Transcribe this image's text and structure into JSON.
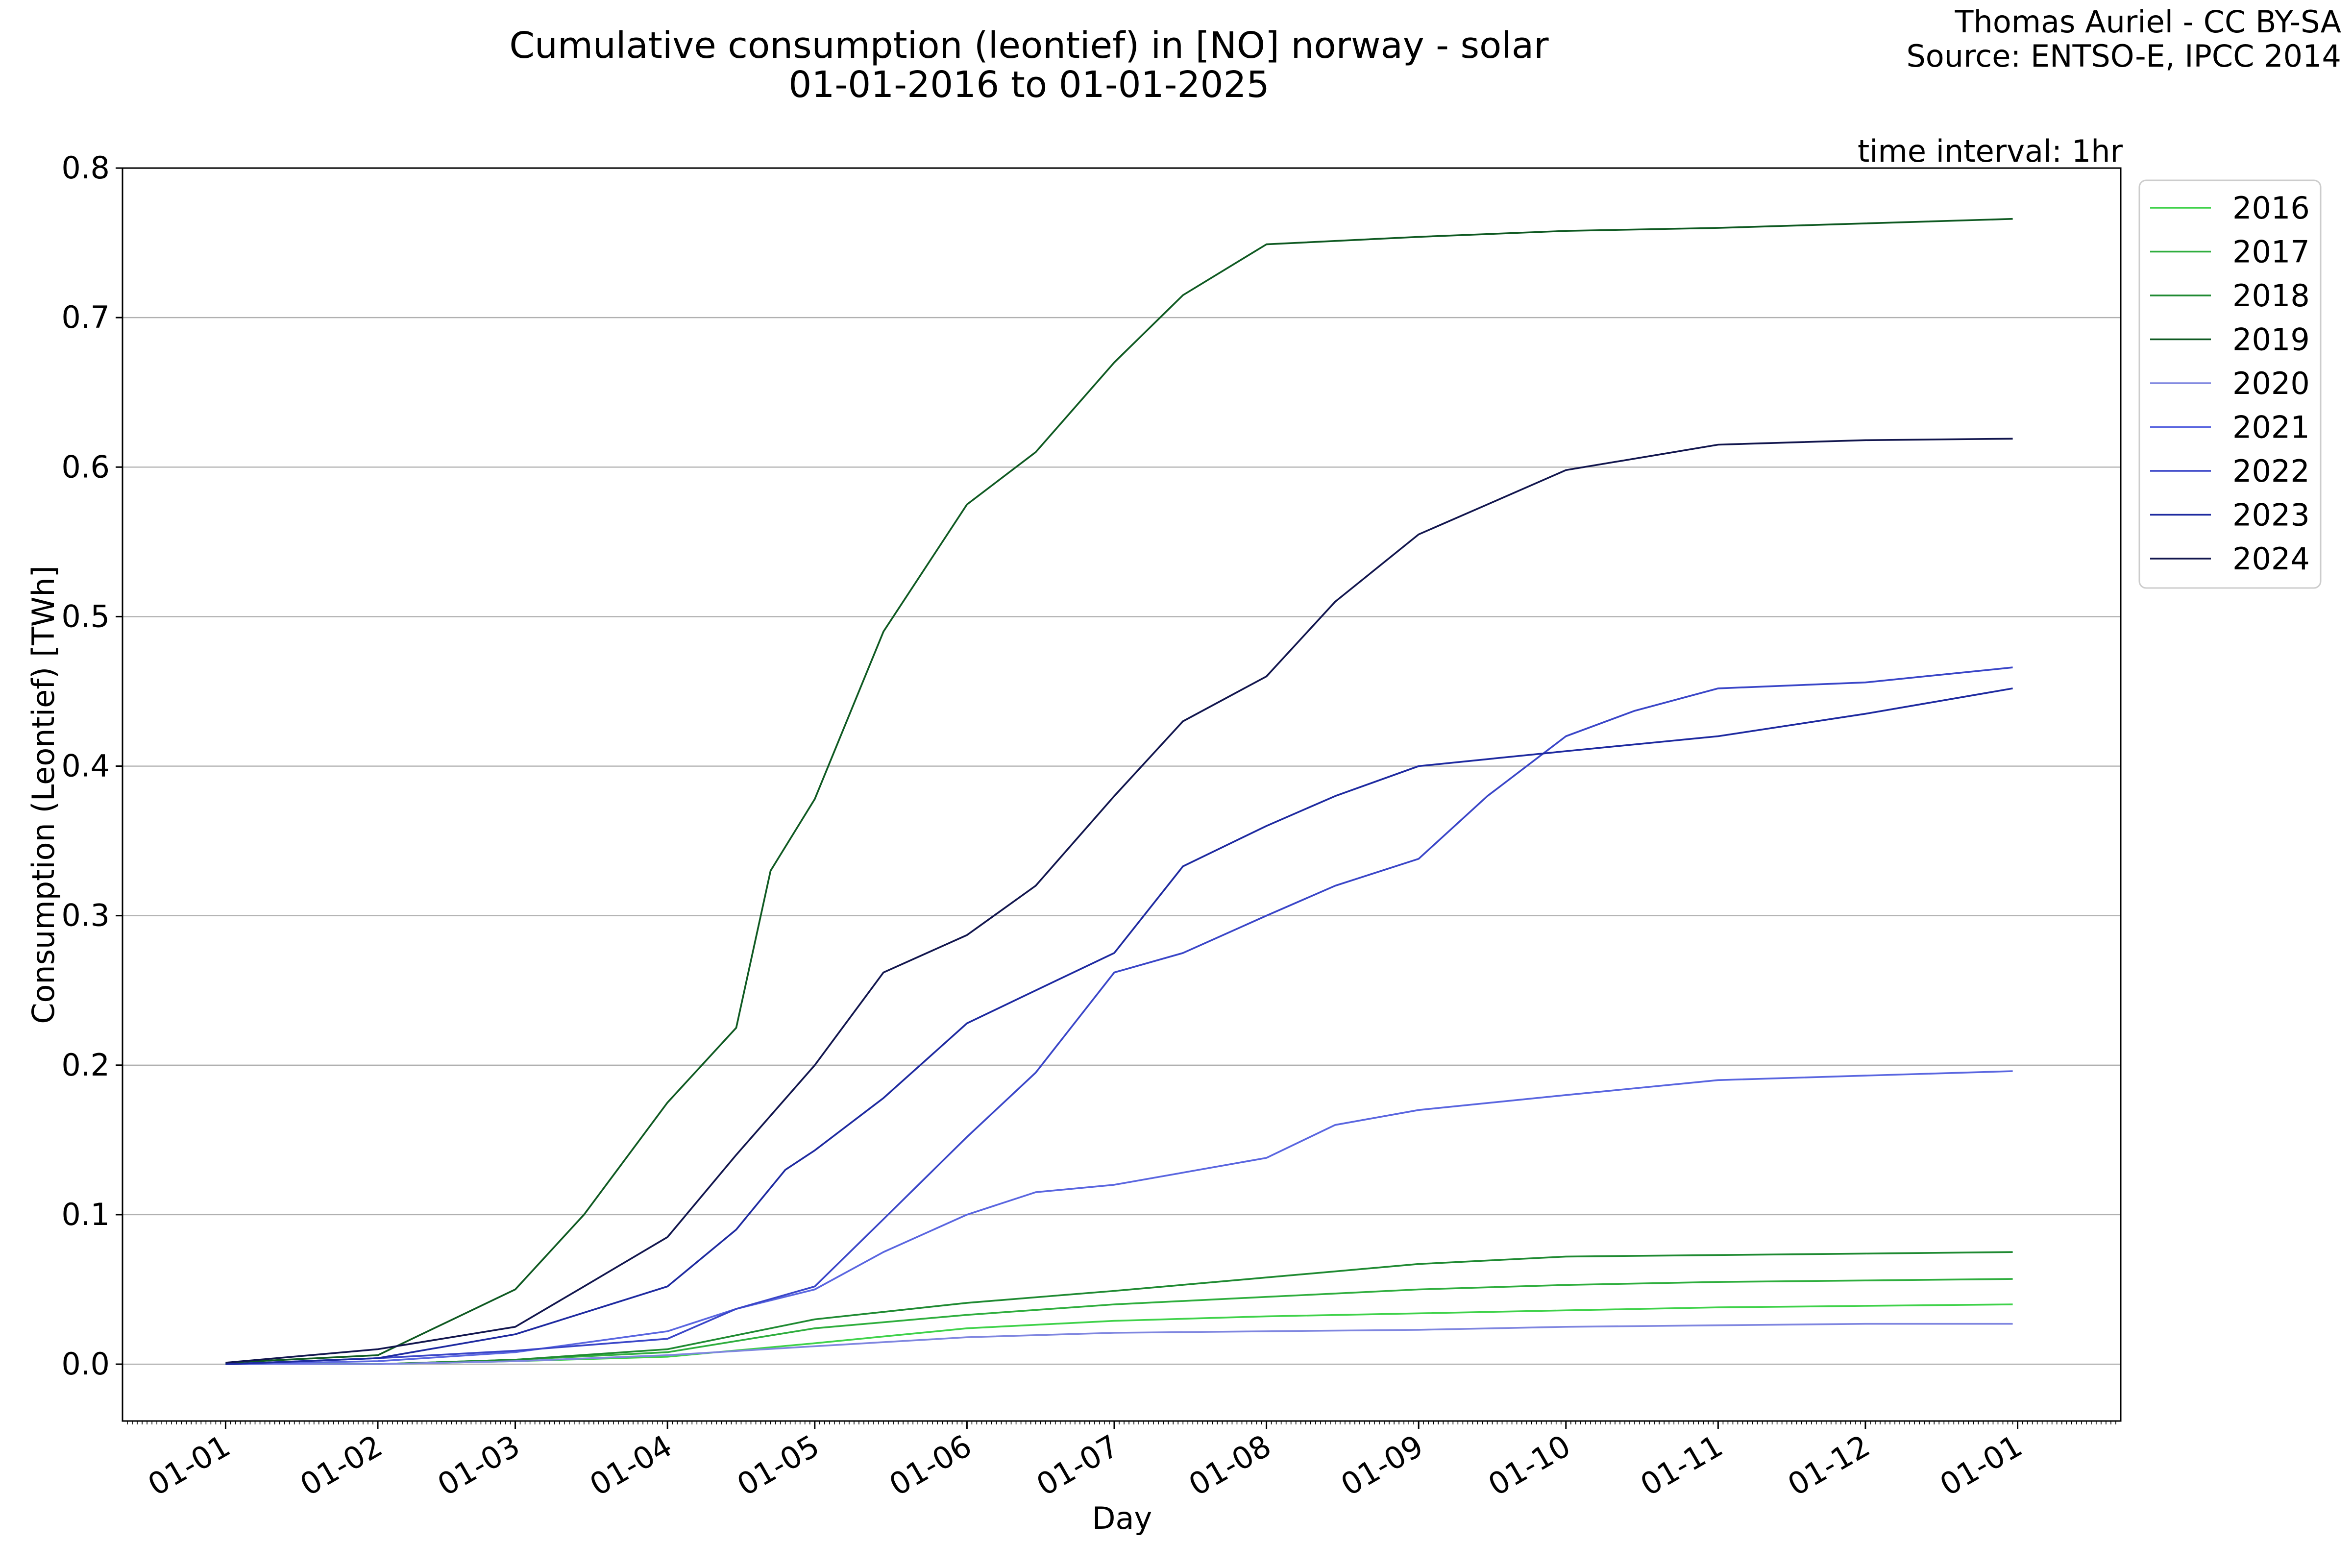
{
  "chart_data": {
    "type": "line",
    "title": "Cumulative consumption (leontief) in [NO] norway - solar",
    "subtitle": "01-01-2016 to 01-01-2025",
    "credit_line1": "Thomas Auriel - CC BY-SA",
    "credit_line2": "Source: ENTSO-E, IPCC 2014",
    "annotation": "time interval: 1hr",
    "xlabel": "Day",
    "ylabel": "Consumption (Leontief) [TWh]",
    "xlim": [
      "12-11",
      "01-22"
    ],
    "ylim": [
      -0.038,
      0.8
    ],
    "yticks": [
      0.0,
      0.1,
      0.2,
      0.3,
      0.4,
      0.5,
      0.6,
      0.7,
      0.8
    ],
    "ytick_labels": [
      "0.0",
      "0.1",
      "0.2",
      "0.3",
      "0.4",
      "0.5",
      "0.6",
      "0.7",
      "0.8"
    ],
    "xticks": [
      "01-01",
      "02-01",
      "03-01",
      "04-01",
      "05-01",
      "06-01",
      "07-01",
      "08-01",
      "09-01",
      "10-01",
      "11-01",
      "12-01",
      "01-01(next)"
    ],
    "xtick_labels": [
      "01-01",
      "01-02",
      "01-03",
      "01-04",
      "01-05",
      "01-06",
      "01-07",
      "01-08",
      "01-09",
      "01-10",
      "01-11",
      "01-12",
      "01-01"
    ],
    "grid": "y",
    "legend_position": "top-right outside",
    "series": [
      {
        "name": "2016",
        "color": "#3fd24a",
        "x": [
          "01-01",
          "02-01",
          "03-01",
          "04-01",
          "05-01",
          "06-01",
          "07-01",
          "08-01",
          "09-01",
          "10-01",
          "11-01",
          "12-01",
          "12-31"
        ],
        "y": [
          0.0,
          0.0,
          0.002,
          0.005,
          0.014,
          0.024,
          0.029,
          0.032,
          0.034,
          0.036,
          0.038,
          0.039,
          0.04
        ]
      },
      {
        "name": "2017",
        "color": "#2fae3e",
        "x": [
          "01-01",
          "02-01",
          "03-01",
          "04-01",
          "05-01",
          "06-01",
          "07-01",
          "08-01",
          "09-01",
          "10-01",
          "11-01",
          "12-01",
          "12-31"
        ],
        "y": [
          0.0,
          0.0,
          0.003,
          0.008,
          0.024,
          0.033,
          0.04,
          0.045,
          0.05,
          0.053,
          0.055,
          0.056,
          0.057
        ]
      },
      {
        "name": "2018",
        "color": "#1f8a32",
        "x": [
          "01-01",
          "02-01",
          "03-01",
          "04-01",
          "05-01",
          "06-01",
          "07-01",
          "08-01",
          "09-01",
          "10-01",
          "11-01",
          "12-01",
          "12-31"
        ],
        "y": [
          0.0,
          0.0,
          0.003,
          0.01,
          0.03,
          0.041,
          0.049,
          0.058,
          0.067,
          0.072,
          0.073,
          0.074,
          0.075
        ]
      },
      {
        "name": "2019",
        "color": "#0f5a22",
        "x": [
          "01-01",
          "02-01",
          "02-15",
          "03-01",
          "03-15",
          "04-01",
          "04-15",
          "04-22",
          "05-01",
          "05-15",
          "06-01",
          "06-15",
          "07-01",
          "07-15",
          "08-01",
          "09-01",
          "10-01",
          "11-01",
          "12-01",
          "12-31"
        ],
        "y": [
          0.001,
          0.006,
          0.028,
          0.05,
          0.1,
          0.175,
          0.225,
          0.33,
          0.378,
          0.49,
          0.575,
          0.61,
          0.67,
          0.715,
          0.749,
          0.754,
          0.758,
          0.76,
          0.763,
          0.766
        ]
      },
      {
        "name": "2020",
        "color": "#7f86e0",
        "x": [
          "01-01",
          "02-01",
          "03-01",
          "04-01",
          "05-01",
          "06-01",
          "07-01",
          "08-01",
          "09-01",
          "10-01",
          "11-01",
          "12-01",
          "12-31"
        ],
        "y": [
          0.0,
          0.0,
          0.002,
          0.006,
          0.012,
          0.018,
          0.021,
          0.022,
          0.023,
          0.025,
          0.026,
          0.027,
          0.027
        ]
      },
      {
        "name": "2021",
        "color": "#5a66e0",
        "x": [
          "01-01",
          "02-01",
          "03-01",
          "04-01",
          "04-15",
          "05-01",
          "05-15",
          "06-01",
          "06-15",
          "07-01",
          "08-01",
          "08-15",
          "09-01",
          "10-01",
          "11-01",
          "12-01",
          "12-31"
        ],
        "y": [
          0.0,
          0.002,
          0.008,
          0.022,
          0.037,
          0.05,
          0.075,
          0.1,
          0.115,
          0.12,
          0.138,
          0.16,
          0.17,
          0.18,
          0.19,
          0.193,
          0.196
        ]
      },
      {
        "name": "2022",
        "color": "#3a46c8",
        "x": [
          "01-01",
          "02-01",
          "03-01",
          "04-01",
          "04-15",
          "05-01",
          "05-15",
          "06-01",
          "06-15",
          "07-01",
          "07-15",
          "08-01",
          "08-15",
          "09-01",
          "09-15",
          "10-01",
          "10-15",
          "11-01",
          "12-01",
          "12-31"
        ],
        "y": [
          0.0,
          0.004,
          0.009,
          0.017,
          0.037,
          0.052,
          0.097,
          0.152,
          0.195,
          0.262,
          0.275,
          0.3,
          0.32,
          0.338,
          0.38,
          0.42,
          0.437,
          0.452,
          0.456,
          0.466
        ]
      },
      {
        "name": "2023",
        "color": "#1e2aa0",
        "x": [
          "01-01",
          "02-01",
          "03-01",
          "04-01",
          "04-15",
          "04-25",
          "05-01",
          "05-15",
          "06-01",
          "06-15",
          "07-01",
          "07-15",
          "08-01",
          "08-15",
          "09-01",
          "10-01",
          "11-01",
          "12-01",
          "12-31"
        ],
        "y": [
          0.0,
          0.004,
          0.02,
          0.052,
          0.09,
          0.13,
          0.143,
          0.178,
          0.228,
          0.25,
          0.275,
          0.333,
          0.36,
          0.38,
          0.4,
          0.41,
          0.42,
          0.435,
          0.452
        ]
      },
      {
        "name": "2024",
        "color": "#12164e",
        "x": [
          "01-01",
          "02-01",
          "03-01",
          "03-15",
          "04-01",
          "04-15",
          "05-01",
          "05-15",
          "06-01",
          "06-15",
          "07-01",
          "07-15",
          "08-01",
          "08-15",
          "09-01",
          "09-15",
          "10-01",
          "11-01",
          "12-01",
          "12-31"
        ],
        "y": [
          0.001,
          0.01,
          0.025,
          0.052,
          0.085,
          0.14,
          0.2,
          0.262,
          0.287,
          0.32,
          0.38,
          0.43,
          0.46,
          0.51,
          0.555,
          0.575,
          0.598,
          0.615,
          0.618,
          0.619
        ]
      }
    ]
  }
}
